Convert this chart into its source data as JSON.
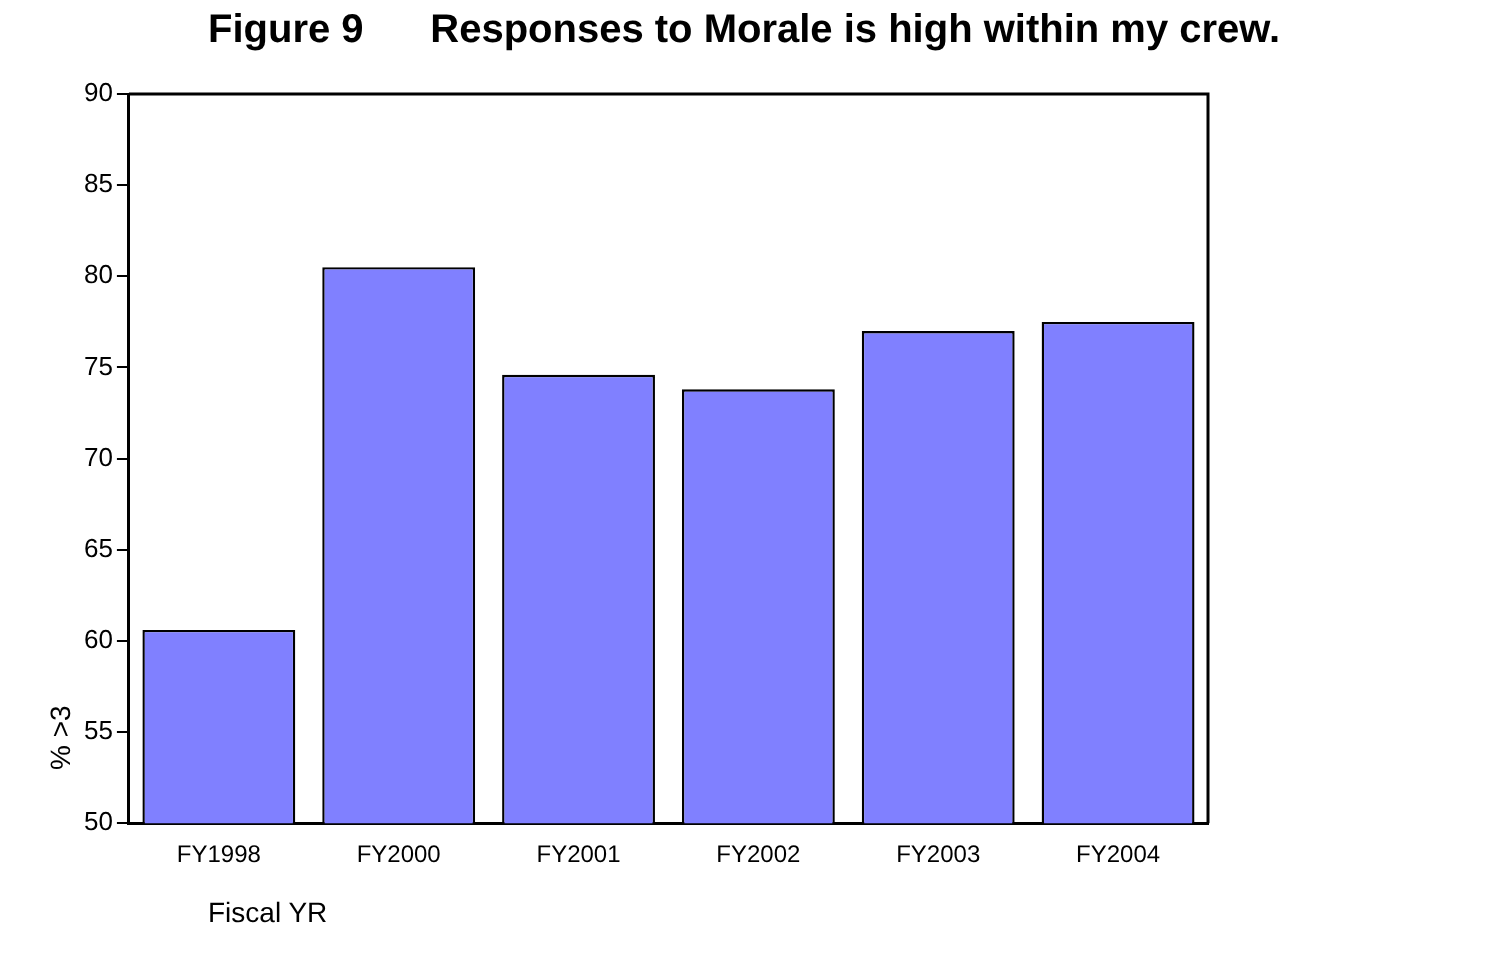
{
  "chart_data": {
    "type": "bar",
    "title": "Figure 9      Responses to Morale is high within my crew.",
    "xlabel": "Fiscal YR",
    "ylabel": "% >3",
    "categories": [
      "FY1998",
      "FY2000",
      "FY2001",
      "FY2002",
      "FY2003",
      "FY2004"
    ],
    "values": [
      60.6,
      80.5,
      74.6,
      73.8,
      77.0,
      77.5
    ],
    "color": "#8080ff",
    "ylim": [
      50,
      90
    ],
    "yticks": [
      50,
      55,
      60,
      65,
      70,
      75,
      80,
      85,
      90
    ],
    "grid": false,
    "legend": false
  }
}
